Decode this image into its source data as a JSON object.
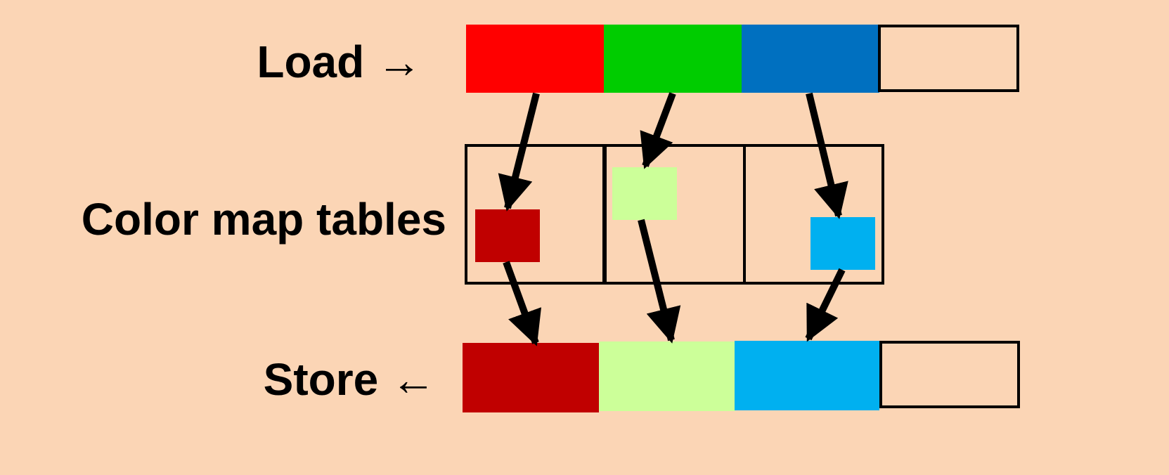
{
  "labels": {
    "load": "Load →",
    "color_map_tables": "Color map tables",
    "store": "Store ←"
  },
  "colors": {
    "background": "#FBD5B5",
    "red": "#FF0000",
    "green": "#00CC00",
    "blue": "#0070C0",
    "dark_red": "#C00000",
    "light_green": "#CCFF99",
    "light_blue": "#00B0F0",
    "empty": "#FBD5B5",
    "stroke": "#000000"
  },
  "rows": {
    "load": [
      "red",
      "green",
      "blue",
      "empty"
    ],
    "tables": [
      "dark_red",
      "light_green",
      "light_blue"
    ],
    "store": [
      "dark_red",
      "light_green",
      "light_blue",
      "empty"
    ]
  }
}
